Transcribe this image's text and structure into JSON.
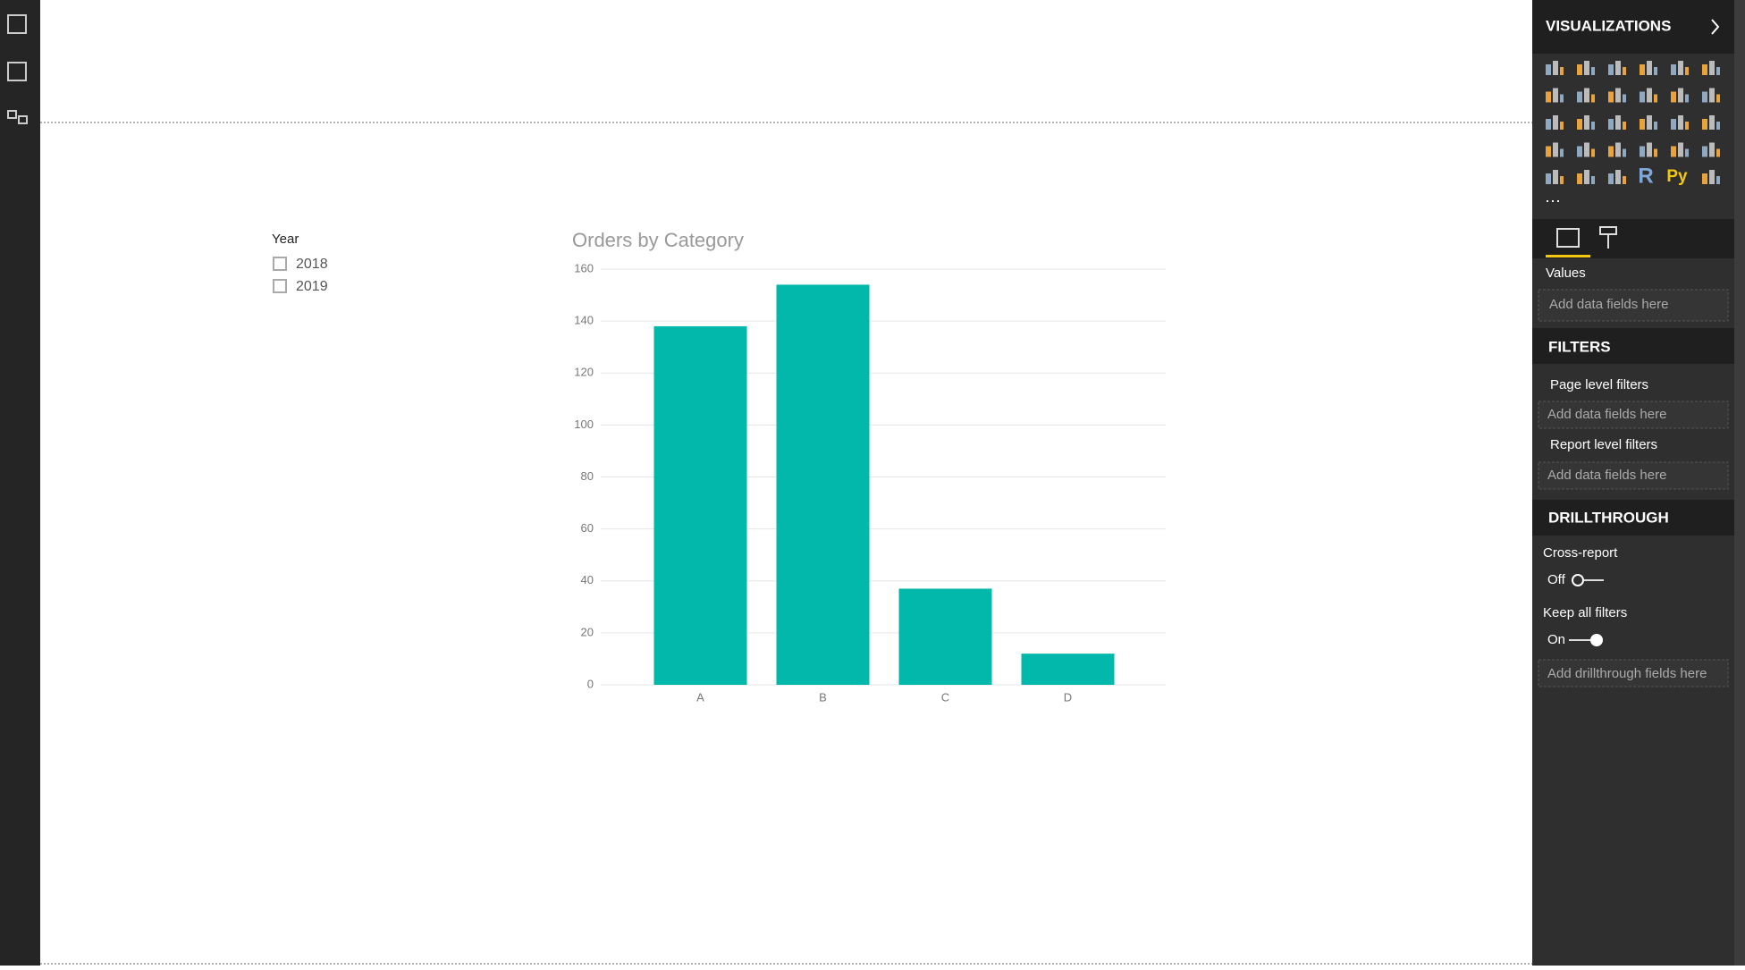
{
  "slicer": {
    "title": "Year",
    "items": [
      "2018",
      "2019"
    ]
  },
  "panel": {
    "title": "VISUALIZATIONS",
    "icon_texts": [
      "R",
      "Py"
    ],
    "values_label": "Values",
    "values_placeholder": "Add data fields here",
    "filters": {
      "title": "FILTERS",
      "page_level": "Page level filters",
      "page_placeholder": "Add data fields here",
      "report_level": "Report level filters",
      "report_placeholder": "Add data fields here"
    },
    "drillthrough": {
      "title": "DRILLTHROUGH",
      "cross_report": "Cross-report",
      "cross_report_state": "Off",
      "keep_all_filters": "Keep all filters",
      "keep_state": "On",
      "placeholder": "Add drillthrough fields here"
    }
  },
  "chart_data": {
    "type": "bar",
    "title": "Orders by Category",
    "categories": [
      "A",
      "B",
      "C",
      "D"
    ],
    "values": [
      138,
      154,
      37,
      12
    ],
    "color": "#01b8aa",
    "ylim": [
      0,
      160
    ],
    "yticks": [
      0,
      20,
      40,
      60,
      80,
      100,
      120,
      140,
      160
    ],
    "grid": true
  }
}
